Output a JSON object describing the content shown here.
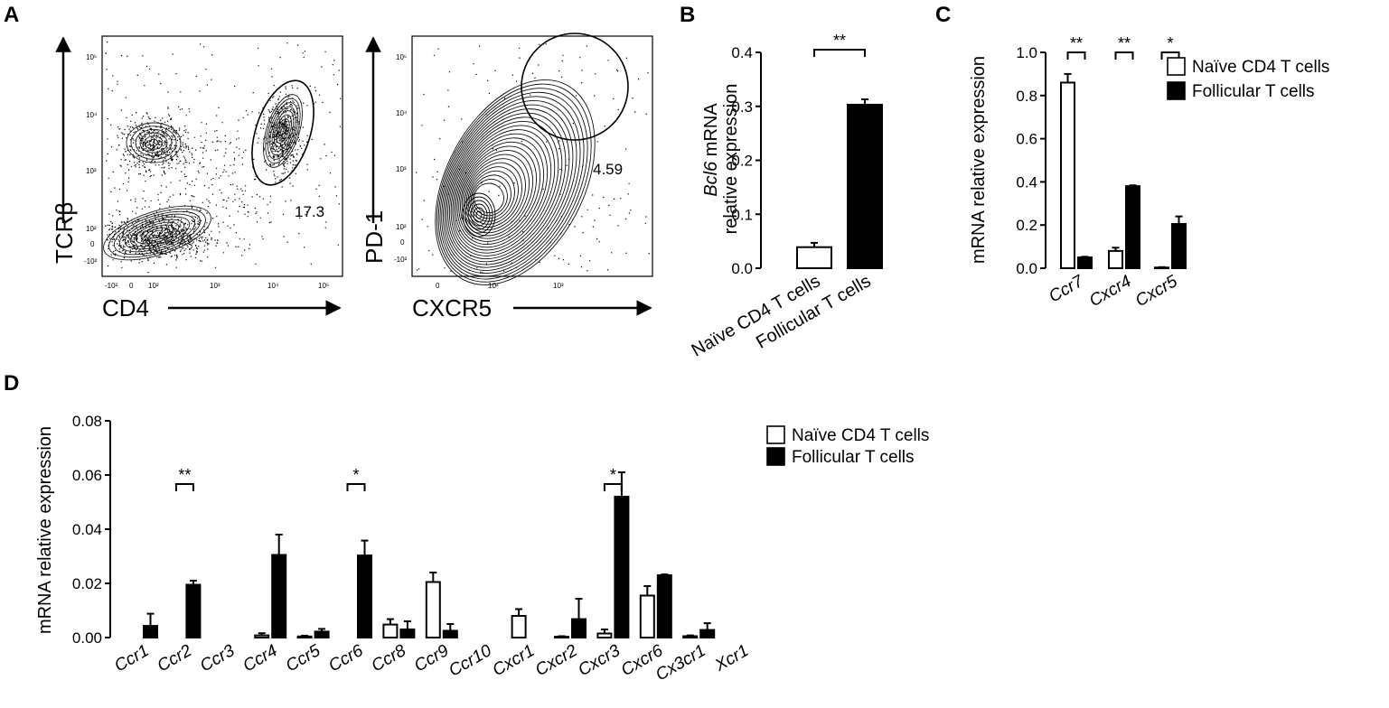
{
  "panels": {
    "A": {
      "letter": "A"
    },
    "B": {
      "letter": "B"
    },
    "C": {
      "letter": "C"
    },
    "D": {
      "letter": "D"
    }
  },
  "flow_left": {
    "y_label": "TCRβ",
    "x_label": "CD4",
    "x_ticks": [
      "-10²",
      "0",
      "10²",
      "10³",
      "10⁴",
      "10⁵"
    ],
    "y_ticks": [
      "10⁵",
      "10⁴",
      "10³",
      "10²",
      "0",
      "-10²"
    ],
    "gate_value": "17.3"
  },
  "flow_right": {
    "y_label": "PD-1",
    "x_label": "CXCR5",
    "x_ticks": [
      "0",
      "10²",
      "10³"
    ],
    "y_ticks": [
      "10⁵",
      "10⁴",
      "10³",
      "10²",
      "0",
      "-10²"
    ],
    "gate_value": "4.59"
  },
  "legend": {
    "naive": "Naïve CD4 T cells",
    "follicular": "Follicular T cells"
  },
  "colors": {
    "naive_fill": "#ffffff",
    "follicular_fill": "#000000",
    "stroke": "#000000"
  },
  "chart_data": [
    {
      "panel": "B",
      "type": "bar",
      "ylabel_italic": "Bcl6",
      "ylabel_rest": " mRNA",
      "ylabel_line2": "relative expression",
      "categories": [
        "Naïve CD4 T cells",
        "Follicular T cells"
      ],
      "values": [
        0.039,
        0.303
      ],
      "errors": [
        0.008,
        0.01
      ],
      "fills": [
        "naive",
        "follicular"
      ],
      "ylim": [
        0,
        0.4
      ],
      "yticks": [
        "0.0",
        "0.1",
        "0.2",
        "0.3",
        "0.4"
      ],
      "significance": [
        {
          "from": 0,
          "to": 1,
          "label": "**"
        }
      ]
    },
    {
      "panel": "C",
      "type": "bar",
      "ylabel": "mRNA relative expression",
      "categories": [
        "Ccr7",
        "Cxcr4",
        "Cxcr5"
      ],
      "series": [
        {
          "key": "naive",
          "values": [
            0.86,
            0.08,
            0.003
          ],
          "errors": [
            0.04,
            0.015,
            0.002
          ]
        },
        {
          "key": "follicular",
          "values": [
            0.05,
            0.38,
            0.205
          ],
          "errors": [
            0.003,
            0.004,
            0.035
          ]
        }
      ],
      "ylim": [
        0,
        1.0
      ],
      "yticks": [
        "0.0",
        "0.2",
        "0.4",
        "0.6",
        "0.8",
        "1.0"
      ],
      "significance": [
        "**",
        "**",
        "*"
      ]
    },
    {
      "panel": "D",
      "type": "bar",
      "ylabel": "mRNA relative expression",
      "categories": [
        "Ccr1",
        "Ccr2",
        "Ccr3",
        "Ccr4",
        "Ccr5",
        "Ccr6",
        "Ccr8",
        "Ccr9",
        "Ccr10",
        "Cxcr1",
        "Cxcr2",
        "Cxcr3",
        "Cxcr6",
        "Cx3cr1",
        "Xcr1"
      ],
      "series": [
        {
          "key": "naive",
          "values": [
            0,
            0,
            0,
            0.0008,
            0.0004,
            0,
            0.0048,
            0.0205,
            0,
            0.008,
            0.0003,
            0.0015,
            0.0155,
            0.0005,
            0
          ],
          "errors": [
            0,
            0,
            0,
            0.0008,
            0.0003,
            0,
            0.002,
            0.0035,
            0,
            0.0025,
            0.0002,
            0.0015,
            0.0035,
            0.0003,
            0
          ]
        },
        {
          "key": "follicular",
          "values": [
            0.0043,
            0.0195,
            0,
            0.0305,
            0.0022,
            0.0303,
            0.003,
            0.0025,
            0,
            0,
            0.0068,
            0.052,
            0.023,
            0.0028,
            0
          ],
          "errors": [
            0.0045,
            0.0015,
            0,
            0.0075,
            0.001,
            0.0055,
            0.003,
            0.0025,
            0,
            0,
            0.0075,
            0.009,
            0.0003,
            0.0025,
            0
          ]
        }
      ],
      "ylim": [
        0,
        0.08
      ],
      "yticks": [
        "0.00",
        "0.02",
        "0.04",
        "0.06",
        "0.08"
      ],
      "significance": [
        {
          "index": 1,
          "label": "**"
        },
        {
          "index": 5,
          "label": "*"
        },
        {
          "index": 11,
          "label": "*"
        }
      ]
    }
  ]
}
